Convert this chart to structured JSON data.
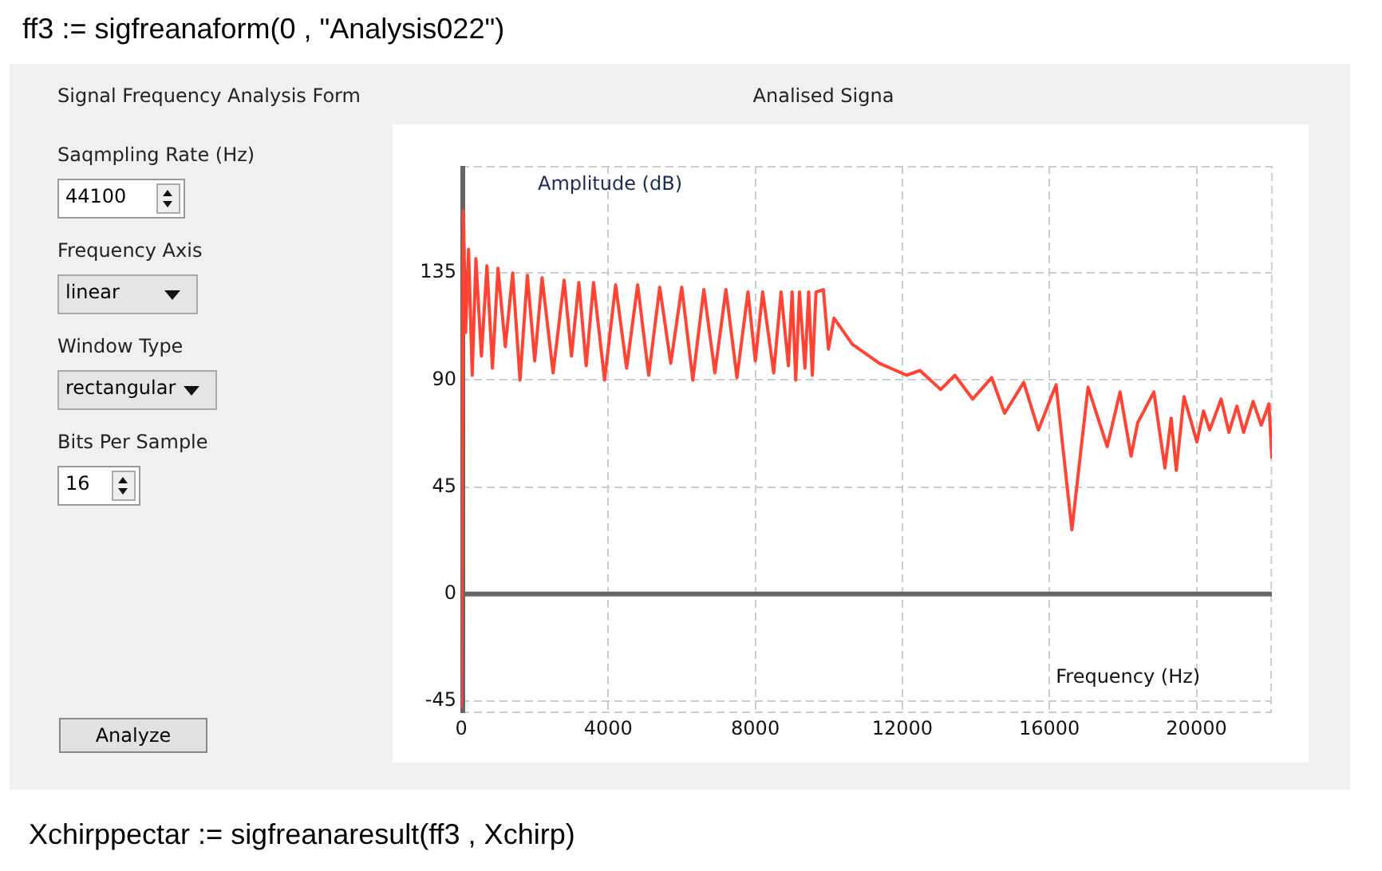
{
  "chart_data": {
    "type": "line",
    "title": "Analised Signa",
    "xlabel": "Frequency (Hz)",
    "ylabel": "Amplitude (dB)",
    "annotations": [
      "ff3 := sigfreanaform(0 , \"Analysis022\")",
      "Signal Frequency Analysis Form",
      "Saqmpling Rate (Hz)",
      "44100",
      "Frequency Axis",
      "linear",
      "Window Type",
      "rectangular",
      "Bits Per Sample",
      "16",
      "Analyze",
      "Xchirppectar := sigfreanaresult(ff3 , Xchirp)"
    ],
    "xlim": [
      0,
      22050
    ],
    "xticks": [
      0,
      4000,
      8000,
      12000,
      16000,
      20000
    ],
    "ylim": [
      -50,
      180
    ],
    "yticks": [
      -45,
      0,
      45,
      90,
      135
    ],
    "grid": true,
    "marker": "none",
    "line_style": "solid",
    "series": [
      {
        "color": "#ff4433",
        "x": [
          0,
          60,
          120,
          200,
          300,
          400,
          550,
          700,
          850,
          1000,
          1200,
          1400,
          1600,
          1800,
          2000,
          2200,
          2500,
          2800,
          3000,
          3200,
          3400,
          3600,
          3900,
          4200,
          4500,
          4800,
          5100,
          5400,
          5700,
          6000,
          6300,
          6600,
          6900,
          7200,
          7500,
          7800,
          8000,
          8200,
          8500,
          8700,
          8900,
          9000,
          9100,
          9200,
          9350,
          9450,
          9550,
          9650,
          9850,
          9990,
          10140,
          10640,
          11380,
          12120,
          12480,
          13040,
          13430,
          13910,
          14430,
          14780,
          15300,
          15700,
          16180,
          16610,
          17050,
          17570,
          17920,
          18220,
          18400,
          18840,
          19140,
          19310,
          19450,
          19660,
          20010,
          20190,
          20360,
          20670,
          20880,
          21100,
          21280,
          21540,
          21760,
          21970,
          22050
        ],
        "values": [
          -48,
          161,
          110,
          145,
          92,
          141,
          100,
          138,
          95,
          137,
          104,
          135,
          90,
          134,
          98,
          133,
          93,
          132,
          100,
          131,
          96,
          131,
          90,
          130,
          95,
          130,
          92,
          129,
          97,
          129,
          90,
          128,
          93,
          128,
          91,
          127,
          98,
          127,
          93,
          127,
          96,
          127,
          90,
          127,
          95,
          127,
          92,
          127,
          128,
          103,
          116,
          105,
          97,
          92,
          94,
          86,
          92,
          82,
          91,
          76,
          89,
          69,
          88,
          27,
          87,
          62,
          85,
          58,
          72,
          85,
          53,
          74,
          52,
          83,
          64,
          77,
          69,
          82,
          68,
          79,
          68,
          81,
          71,
          80,
          57
        ]
      }
    ]
  }
}
